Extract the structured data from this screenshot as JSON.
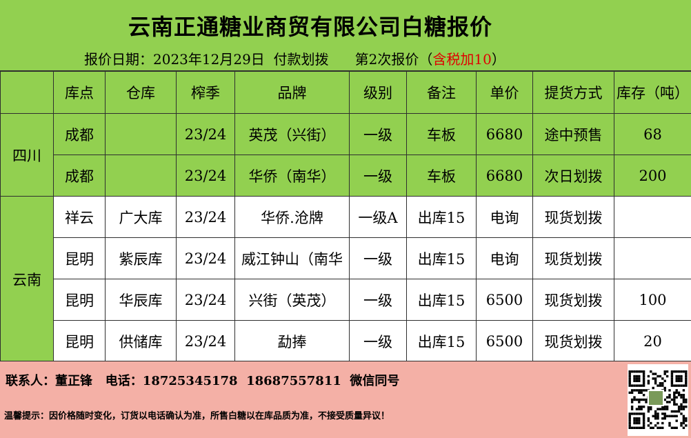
{
  "title": "云南正通糖业商贸有限公司白糖报价",
  "subtitle": {
    "date_label": "报价日期：",
    "date": "2023年12月29日",
    "payment": "付款划拨",
    "round": "第2次报价（",
    "tax": "含税加10",
    "close": "）"
  },
  "table": {
    "headers": [
      "",
      "库点",
      "仓库",
      "榨季",
      "品牌",
      "级别",
      "备注",
      "单价",
      "提货方式",
      "库存（吨）"
    ],
    "regions": [
      "四川",
      "云南"
    ],
    "rows": [
      {
        "location": "成都",
        "warehouse": "",
        "season": "23/24",
        "brand": "英茂（兴街）",
        "grade": "一级",
        "note": "车板",
        "price": "6680",
        "delivery": "途中预售",
        "stock": "68"
      },
      {
        "location": "成都",
        "warehouse": "",
        "season": "23/24",
        "brand": "华侨（南华）",
        "grade": "一级",
        "note": "车板",
        "price": "6680",
        "delivery": "次日划拨",
        "stock": "200"
      },
      {
        "location": "祥云",
        "warehouse": "广大库",
        "season": "23/24",
        "brand": "华侨.沧牌",
        "grade": "一级A",
        "note": "出库15",
        "price": "电询",
        "delivery": "现货划拨",
        "stock": ""
      },
      {
        "location": "昆明",
        "warehouse": "紫辰库",
        "season": "23/24",
        "brand": "威江钟山（南华",
        "grade": "一级",
        "note": "出库15",
        "price": "电询",
        "delivery": "现货划拨",
        "stock": ""
      },
      {
        "location": "昆明",
        "warehouse": "华辰库",
        "season": "23/24",
        "brand": "兴街（英茂）",
        "grade": "一级",
        "note": "出库15",
        "price": "6500",
        "delivery": "现货划拨",
        "stock": "100"
      },
      {
        "location": "昆明",
        "warehouse": "供储库",
        "season": "23/24",
        "brand": "勐捧",
        "grade": "一级",
        "note": "出库15",
        "price": "6500",
        "delivery": "现货划拨",
        "stock": "20"
      }
    ]
  },
  "footer": {
    "contact": "联系人：董正锋   电话：18725345178  18687557811  微信同号",
    "tip": "温馨提示：因价格随时变化，订货以电话确认为准，所售白糖以在库品质为准，不接受质量异议！"
  },
  "colors": {
    "green": "#92d050",
    "pink": "#f4b0a6",
    "red": "#e00000"
  }
}
